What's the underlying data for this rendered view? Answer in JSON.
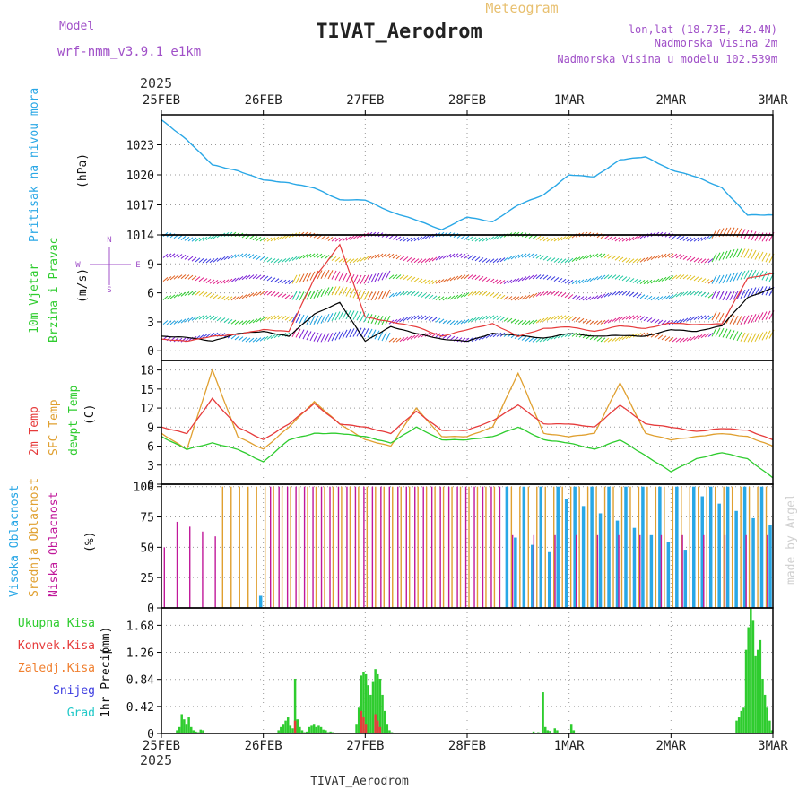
{
  "header": {
    "model_label": "Model",
    "model_name": "wrf-nmm_v3.9.1 e1km",
    "title": "TIVAT_Aerodrom",
    "product": "Meteogram",
    "location": "lon,lat (18.73E, 42.4N)",
    "station_height": "Nadmorska Visina 2m",
    "model_height": "Nadmorska Visina u modelu 102.539m",
    "year": "2025",
    "footer_title": "TIVAT_Aerodrom",
    "credit": "made by Angel"
  },
  "time_axis": {
    "labels": [
      "25FEB",
      "26FEB",
      "27FEB",
      "28FEB",
      "1MAR",
      "2MAR",
      "3MAR"
    ]
  },
  "colors": {
    "pressure": "#29a7e6",
    "temp2m": "#e63b3b",
    "sfc_temp": "#e0a030",
    "dewpoint": "#2ecc2e",
    "high_cloud": "#29a7e6",
    "mid_cloud": "#e0a030",
    "low_cloud": "#c0189a",
    "precip_total": "#2ecc2e",
    "precip_conv": "#e63b3b"
  },
  "chart_data": [
    {
      "type": "line",
      "panel": "pressure",
      "ylabel": "Pritisak na nivou mora",
      "units": "(hPa)",
      "ylim": [
        1014,
        1026
      ],
      "yticks": [
        1014,
        1017,
        1020,
        1023
      ],
      "x_days": [
        0,
        0.25,
        0.5,
        0.75,
        1.0,
        1.25,
        1.5,
        1.75,
        2.0,
        2.25,
        2.5,
        2.75,
        3.0,
        3.25,
        3.5,
        3.75,
        4.0,
        4.25,
        4.5,
        4.75,
        5.0,
        5.25,
        5.5,
        5.75,
        6.0
      ],
      "series": [
        {
          "values": [
            1025.5,
            1023.5,
            1021.0,
            1020.4,
            1019.5,
            1019.2,
            1018.7,
            1017.5,
            1017.5,
            1016.3,
            1015.5,
            1014.5,
            1015.8,
            1015.3,
            1017.0,
            1018.0,
            1020.0,
            1019.8,
            1021.5,
            1021.8,
            1020.5,
            1019.8,
            1018.7,
            1016.0,
            1016.0
          ]
        }
      ]
    },
    {
      "type": "line",
      "panel": "wind",
      "ylabel": "10m Vjetar Brzina i Pravac",
      "units": "(m/s)",
      "legend_compass": [
        "N",
        "W",
        "E",
        "S"
      ],
      "ylim": [
        -1,
        12
      ],
      "yticks": [
        0,
        3,
        6,
        9
      ],
      "barb_levels": [
        1.2,
        3.0,
        5.5,
        7.2,
        9.4,
        11.6
      ],
      "x_days": [
        0,
        0.25,
        0.5,
        0.75,
        1.0,
        1.25,
        1.5,
        1.75,
        2.0,
        2.25,
        2.5,
        2.75,
        3.0,
        3.25,
        3.5,
        3.75,
        4.0,
        4.25,
        4.5,
        4.75,
        5.0,
        5.25,
        5.5,
        5.75,
        6.0
      ],
      "series": [
        {
          "values": [
            1.5,
            1.4,
            1.0,
            1.8,
            2.0,
            1.5,
            3.8,
            5.0,
            1.0,
            2.5,
            1.8,
            1.2,
            1.0,
            1.8,
            1.6,
            1.3,
            1.8,
            1.5,
            1.6,
            1.5,
            2.2,
            2.0,
            2.6,
            5.5,
            6.5
          ]
        },
        {
          "values": [
            1.2,
            1.0,
            1.5,
            1.7,
            2.2,
            2.0,
            7.5,
            11.0,
            3.5,
            3.0,
            2.5,
            1.5,
            2.2,
            2.8,
            1.5,
            2.3,
            2.5,
            2.0,
            2.6,
            2.3,
            2.9,
            2.7,
            2.8,
            7.5,
            8.0
          ]
        }
      ]
    },
    {
      "type": "line",
      "panel": "temperature",
      "ylabel": "2m Temp / SFC Temp / dewpt Temp",
      "units": "(C)",
      "ylim": [
        0,
        19.5
      ],
      "yticks": [
        0,
        3,
        6,
        9,
        12,
        15,
        18
      ],
      "x_days": [
        0,
        0.25,
        0.5,
        0.75,
        1.0,
        1.25,
        1.5,
        1.75,
        2.0,
        2.25,
        2.5,
        2.75,
        3.0,
        3.25,
        3.5,
        3.75,
        4.0,
        4.25,
        4.5,
        4.75,
        5.0,
        5.25,
        5.5,
        5.75,
        6.0
      ],
      "series": [
        {
          "name": "2m Temp",
          "values": [
            9,
            8,
            13.5,
            9,
            7,
            9.5,
            12.7,
            9.5,
            9,
            8,
            11.5,
            8.5,
            8.5,
            10,
            12.5,
            9.5,
            9.5,
            9,
            12.5,
            9.5,
            9,
            8.3,
            8.8,
            8.5,
            7
          ]
        },
        {
          "name": "SFC Temp",
          "values": [
            8,
            5.5,
            18,
            7.5,
            5.5,
            9,
            13,
            9.5,
            7,
            6,
            12,
            7.5,
            7.5,
            9,
            17.5,
            8,
            7.5,
            8,
            16,
            8,
            7,
            7.5,
            8,
            7.5,
            6
          ]
        },
        {
          "name": "dewpt Temp",
          "values": [
            7.5,
            5.5,
            6.5,
            5.5,
            3.5,
            7,
            8,
            8,
            7.5,
            6.5,
            9,
            7,
            7,
            7.5,
            9,
            7,
            6.5,
            5.5,
            7,
            4.5,
            2,
            4,
            5,
            4,
            1
          ]
        }
      ]
    },
    {
      "type": "bar",
      "panel": "cloud",
      "ylabel": "Visoka Oblacnost / Srednja Oblacnost / Niska Oblacnost",
      "units": "(%)",
      "ylim": [
        0,
        102
      ],
      "yticks": [
        0,
        25,
        50,
        75,
        100
      ],
      "series_names": [
        "Visoka Oblacnost",
        "Srednja Oblacnost",
        "Niska Oblacnost"
      ]
    },
    {
      "type": "bar",
      "panel": "precipitation",
      "ylabel": "1hr Precip",
      "units": "(mm)",
      "legend": [
        "Ukupna Kisa",
        "Konvek.Kisa",
        "Zaledj.Kisa",
        "Snijeg",
        "Grad"
      ],
      "ylim": [
        0,
        1.95
      ],
      "yticks": [
        0,
        0.42,
        0.84,
        1.26,
        1.68
      ],
      "hourly_total": [
        0.0,
        0.0,
        0.0,
        0.0,
        0.0,
        0.0,
        0.05,
        0.1,
        0.3,
        0.22,
        0.15,
        0.25,
        0.1,
        0.05,
        0.03,
        0.02,
        0.06,
        0.05,
        0.0,
        0.0,
        0.0,
        0.0,
        0.0,
        0.0,
        0.0,
        0.0,
        0.0,
        0.0,
        0.0,
        0.0,
        0.0,
        0.0,
        0.0,
        0.0,
        0.0,
        0.0,
        0.0,
        0.0,
        0.0,
        0.0,
        0.0,
        0.0,
        0.0,
        0.0,
        0.0,
        0.0,
        0.0,
        0.0,
        0.0,
        0.05,
        0.1,
        0.15,
        0.2,
        0.25,
        0.12,
        0.08,
        0.85,
        0.22,
        0.1,
        0.05,
        0.02,
        0.03,
        0.1,
        0.12,
        0.15,
        0.1,
        0.12,
        0.1,
        0.06,
        0.05,
        0.02,
        0.03,
        0.02,
        0.0,
        0.0,
        0.0,
        0.0,
        0.0,
        0.0,
        0.0,
        0.0,
        0.0,
        0.15,
        0.4,
        0.9,
        0.95,
        0.92,
        0.75,
        0.6,
        0.8,
        1.0,
        0.92,
        0.85,
        0.6,
        0.35,
        0.15,
        0.05,
        0.02,
        0.0,
        0.0,
        0.0,
        0.0,
        0.0,
        0.0,
        0.0,
        0.0,
        0.0,
        0.0,
        0.0,
        0.0,
        0.0,
        0.0,
        0.0,
        0.0,
        0.0,
        0.0,
        0.0,
        0.0,
        0.0,
        0.0,
        0.0,
        0.0,
        0.0,
        0.0,
        0.0,
        0.0,
        0.0,
        0.0,
        0.0,
        0.0,
        0.0,
        0.0,
        0.0,
        0.0,
        0.0,
        0.0,
        0.0,
        0.0,
        0.0,
        0.0,
        0.0,
        0.0,
        0.0,
        0.0,
        0.0,
        0.0,
        0.0,
        0.0,
        0.0,
        0.0,
        0.0,
        0.0,
        0.0,
        0.0,
        0.0,
        0.0,
        0.0,
        0.03,
        0.0,
        0.02,
        0.0,
        0.64,
        0.1,
        0.05,
        0.04,
        0.0,
        0.08,
        0.05,
        0.0,
        0.0,
        0.0,
        0.0,
        0.0,
        0.15,
        0.05,
        0.0,
        0.0,
        0.0,
        0.0,
        0.0,
        0.0,
        0.0,
        0.0,
        0.0,
        0.0,
        0.0,
        0.0,
        0.0,
        0.0,
        0.0,
        0.0,
        0.0,
        0.0,
        0.0,
        0.0,
        0.0,
        0.0,
        0.0,
        0.0,
        0.0,
        0.0,
        0.0,
        0.0,
        0.0,
        0.0,
        0.0,
        0.0,
        0.0,
        0.0,
        0.0,
        0.0,
        0.0,
        0.0,
        0.0,
        0.0,
        0.0,
        0.0,
        0.0,
        0.0,
        0.0,
        0.0,
        0.0,
        0.0,
        0.0,
        0.0,
        0.0,
        0.0,
        0.0,
        0.0,
        0.0,
        0.0,
        0.0,
        0.0,
        0.0,
        0.0,
        0.0,
        0.0,
        0.0,
        0.0,
        0.0,
        0.0,
        0.0,
        0.0,
        0.2,
        0.25,
        0.35,
        0.4,
        1.3,
        1.65,
        1.95,
        1.75,
        1.2,
        1.3,
        1.45,
        0.85,
        0.6,
        0.4,
        0.2,
        0.05
      ],
      "hourly_convective": [
        0.0,
        0.0,
        0.0,
        0.0,
        0.0,
        0.0,
        0.0,
        0.0,
        0.0,
        0.0,
        0.0,
        0.0,
        0.0,
        0.0,
        0.0,
        0.0,
        0.0,
        0.0,
        0.0,
        0.0,
        0.0,
        0.0,
        0.0,
        0.0,
        0.0,
        0.0,
        0.0,
        0.0,
        0.0,
        0.0,
        0.0,
        0.0,
        0.0,
        0.0,
        0.0,
        0.0,
        0.0,
        0.0,
        0.0,
        0.0,
        0.0,
        0.0,
        0.0,
        0.0,
        0.0,
        0.0,
        0.0,
        0.0,
        0.0,
        0.0,
        0.0,
        0.0,
        0.0,
        0.0,
        0.0,
        0.0,
        0.2,
        0.0,
        0.0,
        0.0,
        0.0,
        0.0,
        0.0,
        0.0,
        0.0,
        0.0,
        0.0,
        0.0,
        0.0,
        0.0,
        0.0,
        0.0,
        0.0,
        0.0,
        0.0,
        0.0,
        0.0,
        0.0,
        0.0,
        0.0,
        0.0,
        0.0,
        0.0,
        0.0,
        0.35,
        0.25,
        0.15,
        0.0,
        0.0,
        0.0,
        0.3,
        0.2,
        0.1,
        0.0,
        0.0,
        0.0,
        0.0,
        0.0,
        0.0,
        0.0,
        0.0,
        0.0,
        0.0,
        0.0,
        0.0,
        0.0,
        0.0,
        0.0,
        0.0,
        0.0,
        0.0,
        0.0,
        0.0,
        0.0,
        0.0,
        0.0,
        0.0,
        0.0,
        0.0,
        0.0,
        0.0,
        0.0,
        0.0,
        0.0,
        0.0,
        0.0,
        0.0,
        0.0,
        0.0,
        0.0,
        0.0,
        0.0,
        0.0,
        0.0,
        0.0,
        0.0,
        0.0,
        0.0,
        0.0,
        0.0,
        0.0,
        0.0,
        0.0,
        0.0,
        0.0,
        0.0,
        0.0,
        0.0,
        0.0,
        0.0,
        0.0,
        0.0,
        0.0,
        0.0,
        0.0,
        0.0,
        0.0,
        0.0,
        0.0,
        0.0,
        0.0,
        0.0,
        0.0,
        0.0,
        0.0,
        0.0,
        0.0,
        0.0,
        0.0,
        0.0,
        0.0,
        0.0,
        0.0,
        0.0,
        0.0,
        0.0,
        0.0,
        0.0,
        0.0,
        0.0,
        0.0,
        0.0,
        0.0,
        0.0,
        0.0,
        0.0,
        0.0,
        0.0,
        0.0,
        0.0,
        0.0,
        0.0,
        0.0,
        0.0,
        0.0,
        0.0,
        0.0,
        0.0,
        0.0,
        0.0,
        0.0,
        0.0,
        0.0,
        0.0,
        0.0,
        0.0,
        0.0,
        0.0,
        0.0,
        0.0,
        0.0,
        0.0,
        0.0,
        0.0,
        0.0,
        0.0,
        0.0,
        0.0,
        0.0,
        0.0,
        0.0,
        0.0,
        0.0,
        0.0,
        0.0,
        0.0,
        0.0,
        0.0,
        0.0,
        0.0,
        0.0,
        0.0,
        0.0,
        0.0,
        0.0,
        0.0,
        0.0,
        0.0,
        0.0,
        0.0,
        0.0,
        0.0,
        0.0,
        0.0,
        0.0,
        0.0,
        0.0,
        0.0,
        0.0,
        0.0,
        0.0,
        0.0,
        0.0,
        0.0,
        0.0,
        0.0,
        0.0,
        0.0,
        0.0,
        0.0,
        0.0,
        0.0,
        0.0,
        0.0,
        0.0,
        0.0,
        0.0,
        0.0,
        0.0,
        0.0,
        0.0
      ]
    }
  ]
}
